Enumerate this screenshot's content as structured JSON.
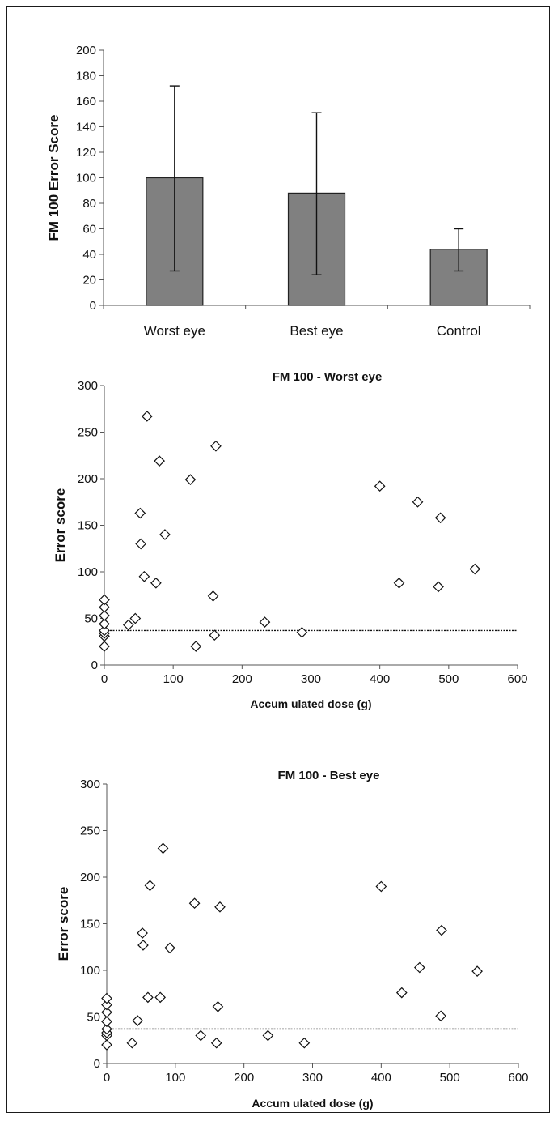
{
  "chart_data": [
    {
      "type": "bar",
      "title": "",
      "xlabel": "",
      "ylabel": "FM 100 Error Score",
      "categories": [
        "Worst eye",
        "Best eye",
        "Control"
      ],
      "values": [
        100,
        88,
        44
      ],
      "error_low": [
        27,
        24,
        27
      ],
      "error_high": [
        172,
        151,
        60
      ],
      "ylim": [
        0,
        200
      ],
      "yticks": [
        0,
        20,
        40,
        60,
        80,
        100,
        120,
        140,
        160,
        180,
        200
      ],
      "bar_color": "#808080",
      "grid": false
    },
    {
      "type": "scatter",
      "title": "FM 100 - Worst eye",
      "xlabel": "Accum ulated dose (g)",
      "ylabel": "Error score",
      "xlim": [
        0,
        600
      ],
      "ylim": [
        0,
        300
      ],
      "xticks": [
        0,
        100,
        200,
        300,
        400,
        500,
        600
      ],
      "yticks": [
        0,
        50,
        100,
        150,
        200,
        250,
        300
      ],
      "reference_line_y": 37,
      "marker": "diamond",
      "points": [
        [
          0,
          20
        ],
        [
          0,
          31
        ],
        [
          0,
          34
        ],
        [
          0,
          37
        ],
        [
          0,
          44
        ],
        [
          0,
          53
        ],
        [
          0,
          62
        ],
        [
          0,
          70
        ],
        [
          35,
          43
        ],
        [
          45,
          50
        ],
        [
          52,
          163
        ],
        [
          53,
          130
        ],
        [
          58,
          95
        ],
        [
          62,
          267
        ],
        [
          75,
          88
        ],
        [
          80,
          219
        ],
        [
          88,
          140
        ],
        [
          125,
          199
        ],
        [
          133,
          20
        ],
        [
          158,
          74
        ],
        [
          160,
          32
        ],
        [
          162,
          235
        ],
        [
          233,
          46
        ],
        [
          287,
          35
        ],
        [
          400,
          192
        ],
        [
          428,
          88
        ],
        [
          455,
          175
        ],
        [
          485,
          84
        ],
        [
          488,
          158
        ],
        [
          538,
          103
        ]
      ],
      "grid": false
    },
    {
      "type": "scatter",
      "title": "FM 100 - Best eye",
      "xlabel": "Accum ulated dose (g)",
      "ylabel": "Error score",
      "xlim": [
        0,
        600
      ],
      "ylim": [
        0,
        300
      ],
      "xticks": [
        0,
        100,
        200,
        300,
        400,
        500,
        600
      ],
      "yticks": [
        0,
        50,
        100,
        150,
        200,
        250,
        300
      ],
      "reference_line_y": 37,
      "marker": "diamond",
      "points": [
        [
          0,
          20
        ],
        [
          0,
          30
        ],
        [
          0,
          33
        ],
        [
          0,
          37
        ],
        [
          0,
          45
        ],
        [
          0,
          55
        ],
        [
          0,
          63
        ],
        [
          0,
          70
        ],
        [
          37,
          22
        ],
        [
          45,
          46
        ],
        [
          52,
          140
        ],
        [
          53,
          127
        ],
        [
          60,
          71
        ],
        [
          63,
          191
        ],
        [
          78,
          71
        ],
        [
          82,
          231
        ],
        [
          92,
          124
        ],
        [
          128,
          172
        ],
        [
          137,
          30
        ],
        [
          160,
          22
        ],
        [
          162,
          61
        ],
        [
          165,
          168
        ],
        [
          235,
          30
        ],
        [
          288,
          22
        ],
        [
          400,
          190
        ],
        [
          430,
          76
        ],
        [
          456,
          103
        ],
        [
          487,
          51
        ],
        [
          488,
          143
        ],
        [
          540,
          99
        ]
      ],
      "grid": false
    }
  ]
}
